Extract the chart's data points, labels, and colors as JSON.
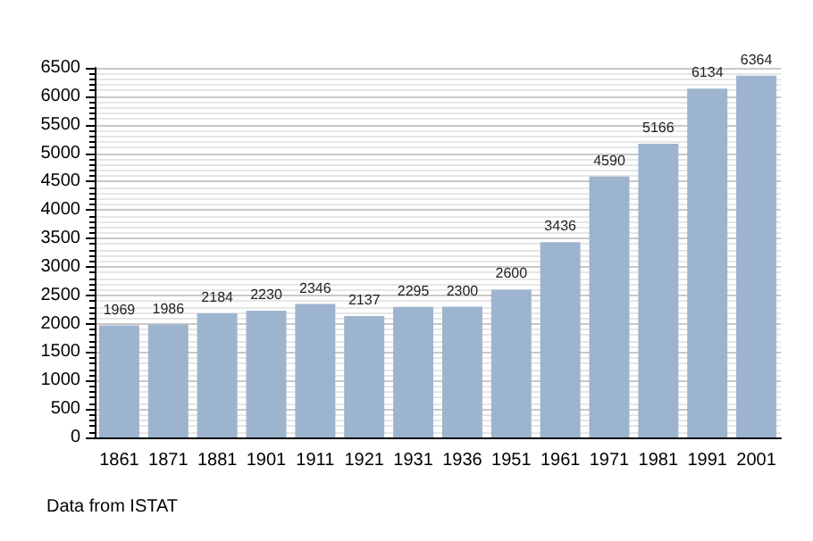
{
  "chart_data": {
    "type": "bar",
    "categories": [
      "1861",
      "1871",
      "1881",
      "1901",
      "1911",
      "1921",
      "1931",
      "1936",
      "1951",
      "1961",
      "1971",
      "1981",
      "1991",
      "2001"
    ],
    "values": [
      1969,
      1986,
      2184,
      2230,
      2346,
      2137,
      2295,
      2300,
      2600,
      3436,
      4590,
      5166,
      6134,
      6364
    ],
    "color": "#9db4cf",
    "ylim": [
      0,
      6500
    ],
    "yticks": [
      0,
      500,
      1000,
      1500,
      2000,
      2500,
      3000,
      3500,
      4000,
      4500,
      5000,
      5500,
      6000,
      6500
    ],
    "grid": true,
    "data_labels": true,
    "annotations": [
      "Data from ISTAT"
    ]
  }
}
